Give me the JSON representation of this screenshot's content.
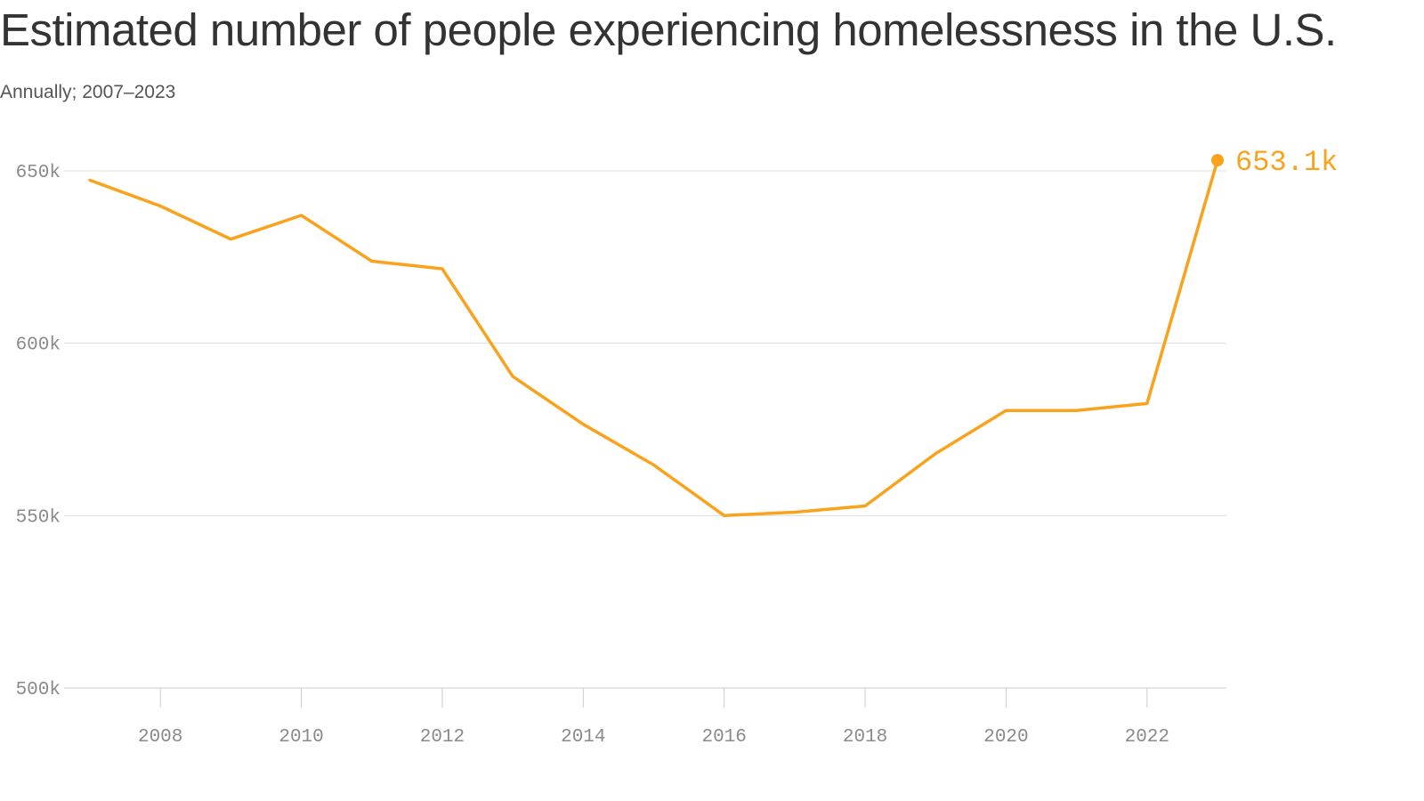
{
  "chart_data": {
    "type": "line",
    "title": "Estimated number of people experiencing homelessness in the U.S.",
    "subtitle": "Annually; 2007–2023",
    "xlabel": "",
    "ylabel": "",
    "x": [
      2007,
      2008,
      2009,
      2010,
      2011,
      2012,
      2013,
      2014,
      2015,
      2016,
      2017,
      2018,
      2019,
      2020,
      2021,
      2022,
      2023
    ],
    "values": [
      647.3,
      639.8,
      630.2,
      637.1,
      623.8,
      621.6,
      590.4,
      576.5,
      564.7,
      550.0,
      551.0,
      552.8,
      568.0,
      580.5,
      580.5,
      582.5,
      653.1
    ],
    "ylim": [
      500,
      650
    ],
    "yticks": [
      500,
      550,
      600,
      650
    ],
    "ytick_labels": [
      "500k",
      "550k",
      "600k",
      "650k"
    ],
    "xticks": [
      2008,
      2010,
      2012,
      2014,
      2016,
      2018,
      2020,
      2022
    ],
    "xtick_labels": [
      "2008",
      "2010",
      "2012",
      "2014",
      "2016",
      "2018",
      "2020",
      "2022"
    ],
    "end_label": "653.1k",
    "grid": true,
    "colors": {
      "line": "#f9a21b",
      "grid": "#dddddd",
      "tick": "#8a8a8a"
    }
  }
}
